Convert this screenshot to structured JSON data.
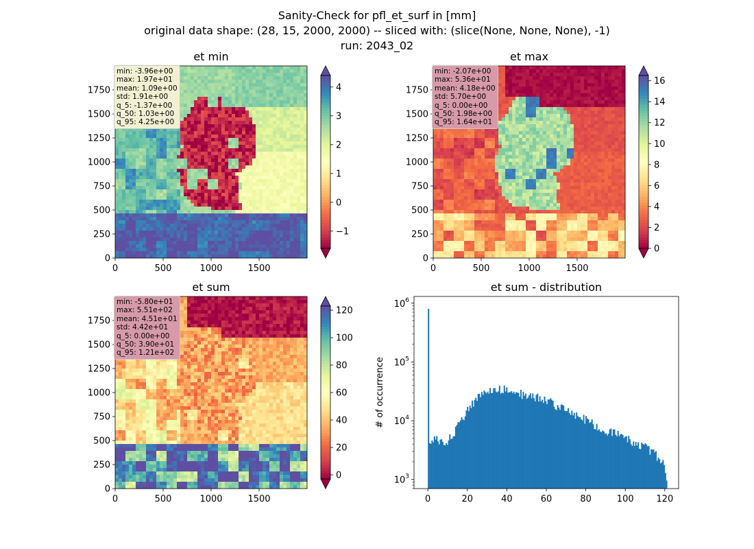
{
  "figure": {
    "title_lines": [
      "Sanity-Check for pfl_et_surf in [mm]",
      "original data shape: (28, 15, 2000, 2000) -- sliced with: (slice(None, None, None), -1)",
      "run: 2043_02"
    ]
  },
  "chart_data": [
    {
      "type": "heatmap",
      "title": "et min",
      "colormap": "Spectral",
      "xlim": [
        0,
        2000
      ],
      "ylim": [
        0,
        2000
      ],
      "x_ticks": [
        0,
        500,
        1000,
        1500
      ],
      "y_ticks": [
        0,
        250,
        500,
        750,
        1000,
        1250,
        1500,
        1750
      ],
      "colorbar": {
        "range": [
          -1.6,
          4.4
        ],
        "ticks": [
          -1,
          0,
          1,
          2,
          3,
          4
        ]
      },
      "stats_box": {
        "bg": "#f2f0d2",
        "lines": [
          "min: -3.96e+00",
          "max: 1.97e+01",
          "mean: 1.09e+00",
          "std: 1.91e+00",
          "q_5: -1.37e+00",
          "q_50: 1.03e+00",
          "q_95: 4.25e+00"
        ]
      },
      "values_note": "",
      "field": {
        "background": 0.72,
        "germany": 0.06,
        "east": 0.62,
        "southeast": 0.55,
        "alps": 0.97,
        "alps_noise": 0.06,
        "north_sea": 0.72,
        "baltic": 0.75,
        "west": 0.8,
        "west_noise": 0.1,
        "global_noise": 0.08,
        "ger_spots": 0.72
      }
    },
    {
      "type": "heatmap",
      "title": "et max",
      "colormap": "Spectral",
      "xlim": [
        0,
        2000
      ],
      "ylim": [
        0,
        2000
      ],
      "x_ticks": [
        0,
        500,
        1000,
        1500
      ],
      "y_ticks": [
        0,
        250,
        500,
        750,
        1000,
        1250,
        1500,
        1750
      ],
      "colorbar": {
        "range": [
          0,
          16.5
        ],
        "ticks": [
          0,
          2,
          4,
          6,
          8,
          10,
          12,
          14,
          16
        ]
      },
      "stats_box": {
        "bg": "#d69aaa",
        "lines": [
          "min: -2.07e+00",
          "max: 5.36e+01",
          "mean: 4.18e+00",
          "std: 5.70e+00",
          "q_5: 0.00e+00",
          "q_50: 1.98e+00",
          "q_95: 1.64e+01"
        ]
      },
      "values_note": "",
      "field": {
        "background": 0.15,
        "germany": 0.7,
        "east": 0.14,
        "southeast": 0.17,
        "alps": 0.32,
        "alps_noise": 0.18,
        "north_sea": 0.02,
        "baltic": 0.02,
        "west": 0.16,
        "west_noise": 0.08,
        "global_noise": 0.06,
        "ger_spots": 0.92
      }
    },
    {
      "type": "heatmap",
      "title": "et sum",
      "colormap": "Spectral",
      "xlim": [
        0,
        2000
      ],
      "ylim": [
        0,
        2000
      ],
      "x_ticks": [
        0,
        500,
        1000,
        1500
      ],
      "y_ticks": [
        0,
        250,
        500,
        750,
        1000,
        1250,
        1500,
        1750
      ],
      "colorbar": {
        "range": [
          -3,
          123
        ],
        "ticks": [
          0,
          20,
          40,
          60,
          80,
          100,
          120
        ]
      },
      "stats_box": {
        "bg": "#d69aaa",
        "lines": [
          "min: -5.80e+01",
          "max: 5.51e+02",
          "mean: 4.51e+01",
          "std: 4.42e+01",
          "q_5: 0.00e+00",
          "q_50: 3.90e+01",
          "q_95: 1.21e+02"
        ]
      },
      "values_note": "",
      "field": {
        "background": 0.3,
        "germany": 0.28,
        "east": 0.3,
        "southeast": 0.4,
        "alps": 0.85,
        "alps_noise": 0.25,
        "north_sea": 0.02,
        "baltic": 0.03,
        "west": 0.42,
        "west_noise": 0.18,
        "global_noise": 0.12,
        "ger_spots": 0.45
      }
    },
    {
      "type": "bar",
      "title": "et sum - distribution",
      "ylabel": "# of occurrence",
      "xlabel": "",
      "yscale": "log",
      "bar_color": "#1f77b4",
      "xlim": [
        -7,
        127
      ],
      "ylim": [
        700,
        1300000
      ],
      "x_ticks": [
        0,
        20,
        40,
        60,
        80,
        100,
        120
      ],
      "y_ticks": [
        {
          "value": 1000,
          "base": "10",
          "exp": "3"
        },
        {
          "value": 10000,
          "base": "10",
          "exp": "4"
        },
        {
          "value": 100000,
          "base": "10",
          "exp": "5"
        },
        {
          "value": 1000000,
          "base": "10",
          "exp": "6"
        }
      ],
      "bin_start": 0,
      "bin_width": 0.6,
      "spike": {
        "x": 0,
        "value": 800000
      },
      "profile_points": [
        [
          0.3,
          2600
        ],
        [
          1,
          4200
        ],
        [
          3,
          5200
        ],
        [
          6,
          4500
        ],
        [
          10,
          4600
        ],
        [
          12,
          5500
        ],
        [
          15,
          8000
        ],
        [
          18,
          11500
        ],
        [
          20,
          15000
        ],
        [
          22,
          19000
        ],
        [
          25,
          24000
        ],
        [
          28,
          30000
        ],
        [
          31,
          33000
        ],
        [
          35,
          34000
        ],
        [
          38,
          35000
        ],
        [
          40,
          36000
        ],
        [
          44,
          32000
        ],
        [
          48,
          28000
        ],
        [
          52,
          26000
        ],
        [
          56,
          25000
        ],
        [
          60,
          23000
        ],
        [
          64,
          19000
        ],
        [
          68,
          16000
        ],
        [
          72,
          13500
        ],
        [
          76,
          12000
        ],
        [
          80,
          10500
        ],
        [
          85,
          8500
        ],
        [
          90,
          7000
        ],
        [
          95,
          6000
        ],
        [
          100,
          5200
        ],
        [
          105,
          4200
        ],
        [
          110,
          3600
        ],
        [
          115,
          2800
        ],
        [
          118,
          2000
        ],
        [
          120,
          1700
        ],
        [
          121,
          1000
        ]
      ]
    }
  ]
}
